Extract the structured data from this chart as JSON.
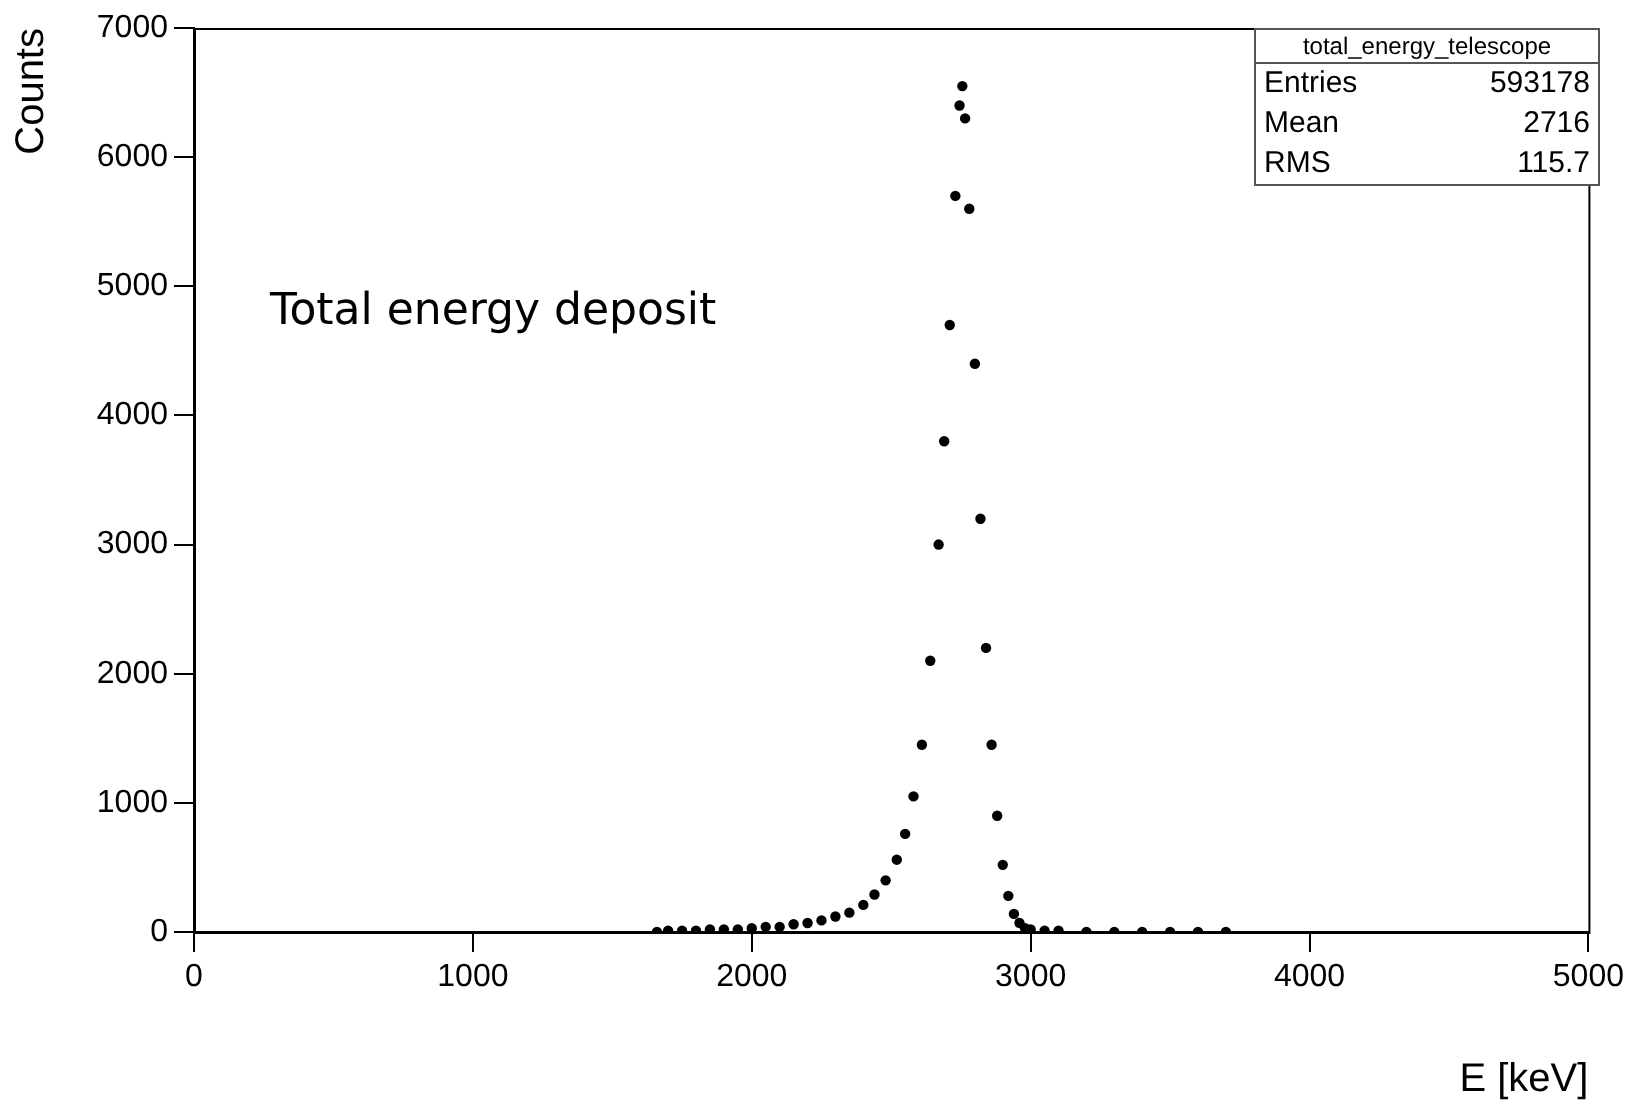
{
  "chart_data": {
    "type": "scatter",
    "xlabel": "E [keV]",
    "ylabel": "Counts",
    "annotations": [
      "Total energy deposit",
      "total_energy_telescope",
      "Entries 593178",
      "Mean 2716",
      "RMS 115.7"
    ],
    "xlim": [
      0,
      5000
    ],
    "xticks": [
      0,
      1000,
      2000,
      3000,
      4000,
      5000
    ],
    "ylim": [
      0,
      7000
    ],
    "yticks": [
      0,
      1000,
      2000,
      3000,
      4000,
      5000,
      6000,
      7000
    ],
    "grid": false,
    "legend": false,
    "marker": "circle",
    "series": [
      {
        "color": "#000000",
        "x": [
          1660,
          1700,
          1750,
          1800,
          1850,
          1900,
          1950,
          2000,
          2050,
          2100,
          2150,
          2200,
          2250,
          2300,
          2350,
          2400,
          2440,
          2480,
          2520,
          2550,
          2580,
          2610,
          2640,
          2670,
          2690,
          2710,
          2730,
          2745,
          2755,
          2765,
          2780,
          2800,
          2820,
          2840,
          2860,
          2880,
          2900,
          2920,
          2940,
          2960,
          2980,
          3000,
          3050,
          3100,
          3200,
          3300,
          3400,
          3500,
          3600,
          3700
        ],
        "values": [
          0,
          10,
          10,
          10,
          20,
          20,
          20,
          30,
          40,
          40,
          60,
          70,
          90,
          120,
          150,
          210,
          290,
          400,
          560,
          760,
          1050,
          1450,
          2100,
          3000,
          3800,
          4700,
          5700,
          6400,
          6550,
          6300,
          5600,
          4400,
          3200,
          2200,
          1450,
          900,
          520,
          280,
          140,
          70,
          30,
          20,
          10,
          10,
          0,
          0,
          0,
          0,
          0,
          0
        ]
      }
    ]
  }
}
